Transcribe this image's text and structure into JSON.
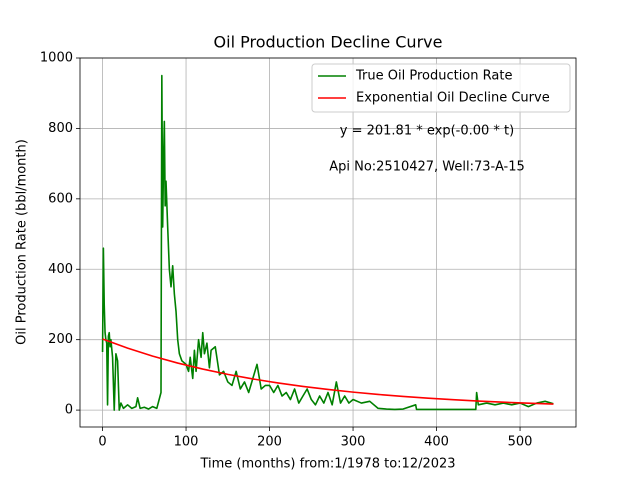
{
  "chart_data": {
    "type": "line",
    "title": "Oil Production Decline Curve",
    "xlabel": "Time (months) from:1/1978 to:12/2023",
    "ylabel": "Oil Production Rate (bbl/month)",
    "annotations": [
      "y = 201.81 * exp(-0.00 * t)",
      "Api No:2510427, Well:73-A-15"
    ],
    "xlim": [
      -27,
      567
    ],
    "ylim": [
      -48,
      1000
    ],
    "xticks": [
      0,
      100,
      200,
      300,
      400,
      500
    ],
    "yticks": [
      0,
      200,
      400,
      600,
      800,
      1000
    ],
    "grid": true,
    "legend": "upper right",
    "series": [
      {
        "name": "True Oil Production Rate",
        "color": "#008000",
        "x": [
          0,
          1,
          2,
          3,
          4,
          5,
          6,
          7,
          8,
          9,
          10,
          12,
          14,
          16,
          18,
          20,
          22,
          25,
          30,
          35,
          40,
          42,
          45,
          50,
          55,
          60,
          65,
          70,
          71,
          72,
          73,
          74,
          75,
          76,
          78,
          80,
          82,
          84,
          86,
          88,
          90,
          92,
          95,
          100,
          103,
          105,
          108,
          110,
          112,
          115,
          118,
          120,
          122,
          125,
          128,
          130,
          135,
          140,
          145,
          150,
          155,
          160,
          165,
          170,
          175,
          180,
          185,
          190,
          195,
          200,
          205,
          210,
          215,
          220,
          225,
          230,
          235,
          240,
          245,
          250,
          255,
          260,
          265,
          270,
          275,
          280,
          285,
          290,
          295,
          300,
          310,
          320,
          330,
          340,
          350,
          360,
          375,
          376,
          400,
          430,
          447,
          448,
          450,
          460,
          470,
          480,
          490,
          500,
          510,
          520,
          530,
          540
        ],
        "values": [
          165,
          460,
          300,
          220,
          200,
          190,
          15,
          210,
          220,
          180,
          200,
          150,
          0,
          160,
          140,
          0,
          20,
          5,
          15,
          5,
          10,
          35,
          5,
          8,
          3,
          10,
          5,
          50,
          950,
          520,
          700,
          820,
          580,
          650,
          520,
          400,
          350,
          410,
          330,
          280,
          200,
          160,
          140,
          130,
          110,
          150,
          90,
          170,
          110,
          200,
          150,
          220,
          160,
          190,
          120,
          170,
          180,
          100,
          110,
          80,
          70,
          110,
          60,
          80,
          50,
          90,
          130,
          60,
          70,
          70,
          50,
          70,
          40,
          50,
          30,
          60,
          20,
          40,
          60,
          30,
          15,
          40,
          20,
          50,
          15,
          80,
          20,
          40,
          20,
          30,
          20,
          25,
          5,
          3,
          2,
          3,
          15,
          2,
          2,
          2,
          2,
          50,
          15,
          20,
          15,
          20,
          15,
          20,
          10,
          20,
          25,
          18
        ]
      },
      {
        "name": "Exponential Oil Decline Curve",
        "color": "#ff0000",
        "x": [
          0,
          30,
          60,
          90,
          120,
          150,
          180,
          210,
          240,
          270,
          300,
          330,
          360,
          390,
          420,
          450,
          480,
          510,
          540
        ],
        "values": [
          201.8,
          175.9,
          153.3,
          133.6,
          116.5,
          101.5,
          88.5,
          77.1,
          67.2,
          58.6,
          51.1,
          44.5,
          38.8,
          33.8,
          29.5,
          25.7,
          22.4,
          19.5,
          17.0
        ]
      }
    ]
  }
}
